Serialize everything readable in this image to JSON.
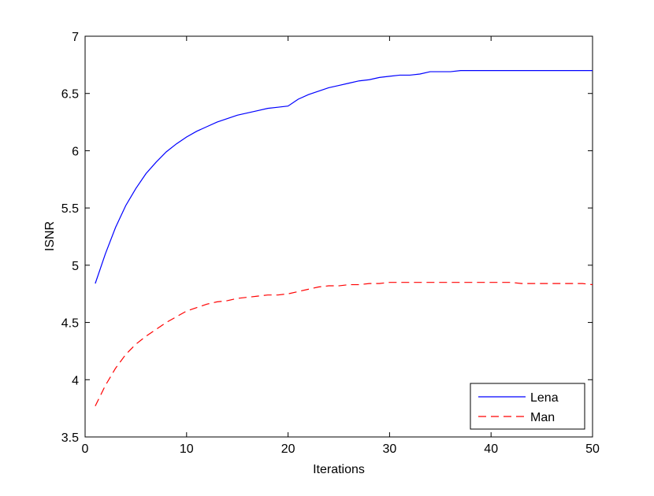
{
  "chart_data": {
    "type": "line",
    "x": [
      1,
      2,
      3,
      4,
      5,
      6,
      7,
      8,
      9,
      10,
      11,
      12,
      13,
      14,
      15,
      16,
      17,
      18,
      19,
      20,
      21,
      22,
      23,
      24,
      25,
      26,
      27,
      28,
      29,
      30,
      31,
      32,
      33,
      34,
      35,
      36,
      37,
      38,
      39,
      40,
      41,
      42,
      43,
      44,
      45,
      46,
      47,
      48,
      49,
      50
    ],
    "series": [
      {
        "name": "Lena",
        "color": "#0000ff",
        "dash": "solid",
        "values": [
          4.84,
          5.1,
          5.33,
          5.52,
          5.67,
          5.8,
          5.9,
          5.99,
          6.06,
          6.12,
          6.17,
          6.21,
          6.25,
          6.28,
          6.31,
          6.33,
          6.35,
          6.37,
          6.38,
          6.39,
          6.45,
          6.49,
          6.52,
          6.55,
          6.57,
          6.59,
          6.61,
          6.62,
          6.64,
          6.65,
          6.66,
          6.66,
          6.67,
          6.69,
          6.69,
          6.69,
          6.7,
          6.7,
          6.7,
          6.7,
          6.7,
          6.7,
          6.7,
          6.7,
          6.7,
          6.7,
          6.7,
          6.7,
          6.7,
          6.7
        ]
      },
      {
        "name": "Man",
        "color": "#ff0000",
        "dash": "dashed",
        "values": [
          3.77,
          3.95,
          4.1,
          4.22,
          4.31,
          4.38,
          4.44,
          4.5,
          4.55,
          4.6,
          4.63,
          4.66,
          4.68,
          4.69,
          4.71,
          4.72,
          4.73,
          4.74,
          4.74,
          4.75,
          4.77,
          4.79,
          4.81,
          4.82,
          4.82,
          4.83,
          4.83,
          4.84,
          4.84,
          4.85,
          4.85,
          4.85,
          4.85,
          4.85,
          4.85,
          4.85,
          4.85,
          4.85,
          4.85,
          4.85,
          4.85,
          4.85,
          4.84,
          4.84,
          4.84,
          4.84,
          4.84,
          4.84,
          4.84,
          4.83
        ]
      }
    ],
    "xlabel": "Iterations",
    "ylabel": "ISNR",
    "xlim": [
      0,
      50
    ],
    "xticks": [
      0,
      10,
      20,
      30,
      40,
      50
    ],
    "ylim": [
      3.5,
      7
    ],
    "yticks": [
      3.5,
      4,
      4.5,
      5,
      5.5,
      6,
      6.5,
      7
    ],
    "legend": "lower right"
  }
}
